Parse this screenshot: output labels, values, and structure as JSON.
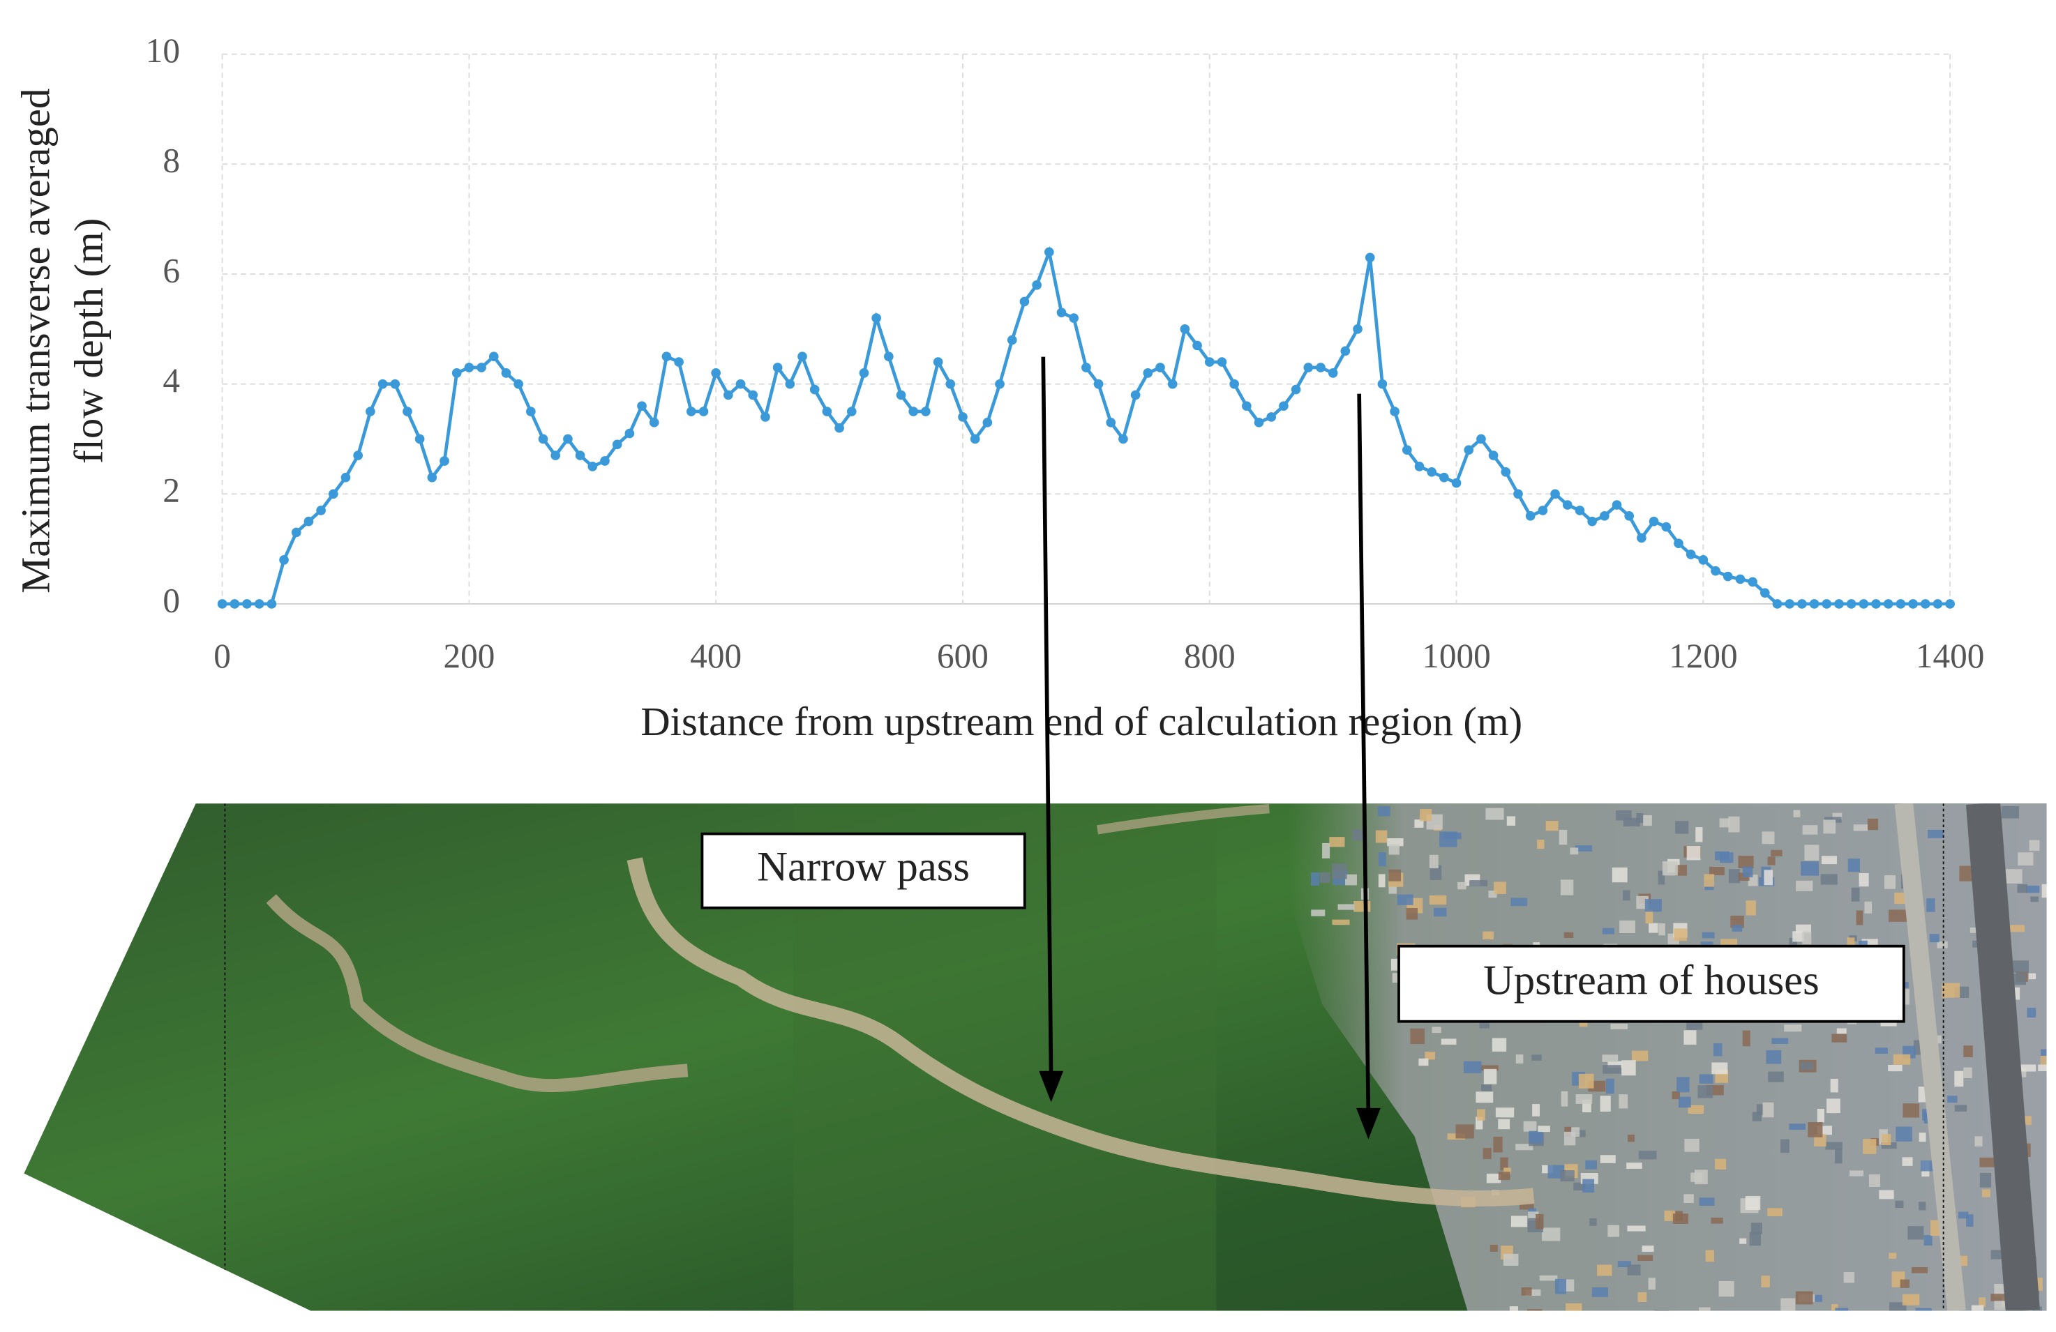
{
  "chart_data": {
    "type": "line",
    "x_label": "Distance from upstream end of calculation region (m)",
    "y_label_lines": [
      "Maximum transverse averaged",
      "flow depth (m)"
    ],
    "x": [
      0,
      10,
      20,
      30,
      40,
      50,
      60,
      70,
      80,
      90,
      100,
      110,
      120,
      130,
      140,
      150,
      160,
      170,
      180,
      190,
      200,
      210,
      220,
      230,
      240,
      250,
      260,
      270,
      280,
      290,
      300,
      310,
      320,
      330,
      340,
      350,
      360,
      370,
      380,
      390,
      400,
      410,
      420,
      430,
      440,
      450,
      460,
      470,
      480,
      490,
      500,
      510,
      520,
      530,
      540,
      550,
      560,
      570,
      580,
      590,
      600,
      610,
      620,
      630,
      640,
      650,
      660,
      670,
      680,
      690,
      700,
      710,
      720,
      730,
      740,
      750,
      760,
      770,
      780,
      790,
      800,
      810,
      820,
      830,
      840,
      850,
      860,
      870,
      880,
      890,
      900,
      910,
      920,
      930,
      940,
      950,
      960,
      970,
      980,
      990,
      1000,
      1010,
      1020,
      1030,
      1040,
      1050,
      1060,
      1070,
      1080,
      1090,
      1100,
      1110,
      1120,
      1130,
      1140,
      1150,
      1160,
      1170,
      1180,
      1190,
      1200,
      1210,
      1220,
      1230,
      1240,
      1250,
      1260,
      1270,
      1280,
      1290,
      1300,
      1310,
      1320,
      1330,
      1340,
      1350,
      1360,
      1370,
      1380,
      1390,
      1400
    ],
    "values": [
      0,
      0,
      0,
      0,
      0,
      0.8,
      1.3,
      1.5,
      1.7,
      2.0,
      2.3,
      2.7,
      3.5,
      4.0,
      4.0,
      3.5,
      3.0,
      2.3,
      2.6,
      4.2,
      4.3,
      4.3,
      4.5,
      4.2,
      4.0,
      3.5,
      3.0,
      2.7,
      3.0,
      2.7,
      2.5,
      2.6,
      2.9,
      3.1,
      3.6,
      3.3,
      4.5,
      4.4,
      3.5,
      3.5,
      4.2,
      3.8,
      4.0,
      3.8,
      3.4,
      4.3,
      4.0,
      4.5,
      3.9,
      3.5,
      3.2,
      3.5,
      4.2,
      5.2,
      4.5,
      3.8,
      3.5,
      3.5,
      4.4,
      4.0,
      3.4,
      3.0,
      3.3,
      4.0,
      4.8,
      5.5,
      5.8,
      6.4,
      5.3,
      5.2,
      4.3,
      4.0,
      3.3,
      3.0,
      3.8,
      4.2,
      4.3,
      4.0,
      5.0,
      4.7,
      4.4,
      4.4,
      4.0,
      3.6,
      3.3,
      3.4,
      3.6,
      3.9,
      4.3,
      4.3,
      4.2,
      4.6,
      5.0,
      6.3,
      4.0,
      3.5,
      2.8,
      2.5,
      2.4,
      2.3,
      2.2,
      2.8,
      3.0,
      2.7,
      2.4,
      2.0,
      1.6,
      1.7,
      2.0,
      1.8,
      1.7,
      1.5,
      1.6,
      1.8,
      1.6,
      1.2,
      1.5,
      1.4,
      1.1,
      0.9,
      0.8,
      0.6,
      0.5,
      0.45,
      0.4,
      0.2,
      0,
      0,
      0,
      0,
      0,
      0,
      0,
      0,
      0,
      0,
      0,
      0,
      0,
      0,
      0
    ],
    "color": "#3a9ad9",
    "xlim": [
      0,
      1400
    ],
    "xticks": [
      0,
      200,
      400,
      600,
      800,
      1000,
      1200,
      1400
    ],
    "ylim": [
      0,
      10
    ],
    "yticks": [
      0,
      2,
      4,
      6,
      8,
      10
    ],
    "grid": true,
    "annotations": [
      "Narrow pass",
      "Upstream of houses"
    ]
  }
}
